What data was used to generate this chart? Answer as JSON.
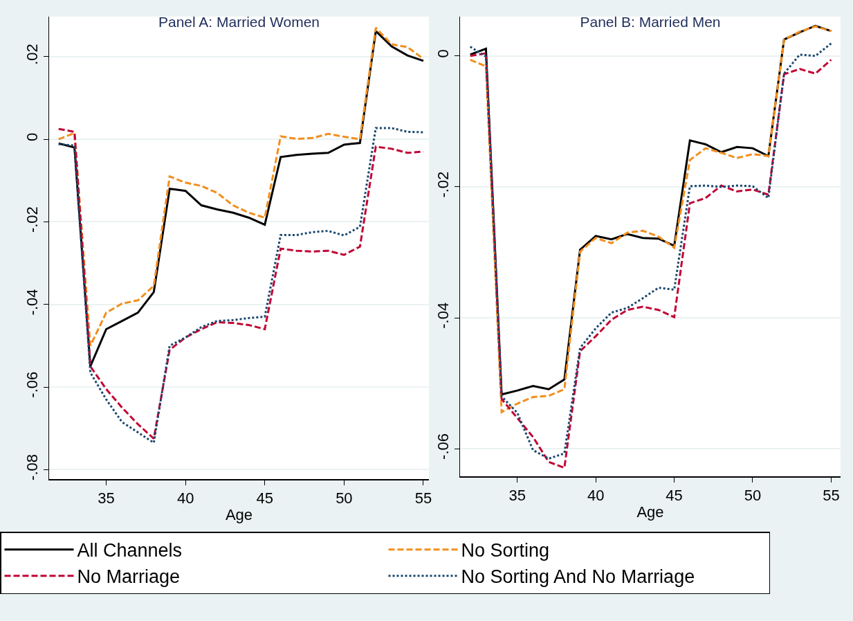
{
  "chart_data": [
    {
      "type": "line",
      "title": "Panel A: Married Women",
      "xlabel": "Age",
      "x": [
        32,
        33,
        34,
        35,
        36,
        37,
        38,
        39,
        40,
        41,
        42,
        43,
        44,
        45,
        46,
        47,
        48,
        49,
        50,
        51,
        52,
        53,
        54,
        55
      ],
      "xlim": [
        31.4,
        55.35
      ],
      "xticks": [
        35,
        40,
        45,
        50,
        55
      ],
      "ylim": [
        -0.0823,
        0.0297
      ],
      "yticks": [
        {
          "value": -0.08,
          "label": "-.08"
        },
        {
          "value": -0.06,
          "label": "-.06"
        },
        {
          "value": -0.04,
          "label": "-.04"
        },
        {
          "value": -0.02,
          "label": "-.02"
        },
        0,
        {
          "value": 0.02,
          "label": ".02"
        }
      ],
      "grid": "y",
      "legend": "bottom",
      "marker": "none",
      "series": [
        {
          "name": "All Channels",
          "color": "#000000",
          "line_style": "solid",
          "values": [
            -0.001,
            -0.002,
            -0.055,
            -0.046,
            -0.044,
            -0.042,
            -0.037,
            -0.012,
            -0.0125,
            -0.016,
            -0.017,
            -0.0178,
            -0.019,
            -0.0207,
            -0.0043,
            -0.0038,
            -0.0035,
            -0.0033,
            -0.0013,
            -0.0009,
            0.0262,
            0.0225,
            0.0203,
            0.019
          ]
        },
        {
          "name": "No Sorting",
          "color": "#f28e1c",
          "line_style": "dashed",
          "values": [
            0.0,
            0.0015,
            -0.05,
            -0.042,
            -0.0398,
            -0.039,
            -0.0355,
            -0.009,
            -0.0105,
            -0.0113,
            -0.013,
            -0.016,
            -0.0178,
            -0.019,
            0.0007,
            0.0001,
            0.0003,
            0.0013,
            0.0006,
            0.0,
            0.027,
            0.023,
            0.0223,
            0.0195
          ]
        },
        {
          "name": "No Marriage",
          "color": "#c10534",
          "line_style": "dashed",
          "values": [
            0.0025,
            0.0018,
            -0.055,
            -0.0605,
            -0.065,
            -0.069,
            -0.0725,
            -0.051,
            -0.048,
            -0.046,
            -0.0443,
            -0.0445,
            -0.045,
            -0.046,
            -0.0265,
            -0.027,
            -0.0272,
            -0.027,
            -0.028,
            -0.026,
            -0.0018,
            -0.0023,
            -0.0033,
            -0.003
          ]
        },
        {
          "name": "No Sorting And No Marriage",
          "color": "#1a476f",
          "line_style": "dotted",
          "values": [
            -0.0012,
            -0.0015,
            -0.0565,
            -0.063,
            -0.0685,
            -0.071,
            -0.0735,
            -0.05,
            -0.048,
            -0.0455,
            -0.044,
            -0.0438,
            -0.0433,
            -0.043,
            -0.0232,
            -0.0232,
            -0.0225,
            -0.0222,
            -0.0233,
            -0.0212,
            0.0027,
            0.0027,
            0.0018,
            0.0017
          ]
        }
      ]
    },
    {
      "type": "line",
      "title": "Panel B: Married Men",
      "xlabel": "Age",
      "x": [
        32,
        33,
        34,
        35,
        36,
        37,
        38,
        39,
        40,
        41,
        42,
        43,
        44,
        45,
        46,
        47,
        48,
        49,
        50,
        51,
        52,
        53,
        54,
        55
      ],
      "xlim": [
        31.35,
        55.6
      ],
      "xticks": [
        35,
        40,
        45,
        50,
        55
      ],
      "ylim": [
        -0.0642,
        0.006
      ],
      "yticks": [
        {
          "value": -0.06,
          "label": "-.06"
        },
        {
          "value": -0.04,
          "label": "-.04"
        },
        {
          "value": -0.02,
          "label": "-.02"
        },
        0
      ],
      "grid": "y",
      "marker": "none",
      "series": [
        {
          "color": "#000000",
          "line_style": "solid",
          "values": [
            0.0002,
            0.0011,
            -0.0517,
            -0.0511,
            -0.0504,
            -0.0509,
            -0.0494,
            -0.0296,
            -0.0275,
            -0.028,
            -0.0272,
            -0.0278,
            -0.0279,
            -0.029,
            -0.0129,
            -0.0135,
            -0.0147,
            -0.0139,
            -0.0141,
            -0.0153,
            0.0025,
            0.0036,
            0.0046,
            0.0038
          ]
        },
        {
          "color": "#f28e1c",
          "line_style": "dashed",
          "values": [
            -0.0006,
            -0.0016,
            -0.0544,
            -0.0531,
            -0.0521,
            -0.0519,
            -0.0509,
            -0.0299,
            -0.0278,
            -0.0286,
            -0.027,
            -0.0267,
            -0.0276,
            -0.0293,
            -0.0159,
            -0.0141,
            -0.0148,
            -0.0156,
            -0.015,
            -0.0153,
            0.0025,
            0.0037,
            0.0045,
            0.0038
          ]
        },
        {
          "color": "#c10534",
          "line_style": "dashed",
          "values": [
            0.0,
            0.0004,
            -0.0524,
            -0.0553,
            -0.0582,
            -0.062,
            -0.0629,
            -0.0451,
            -0.0428,
            -0.0403,
            -0.0388,
            -0.0383,
            -0.0388,
            -0.0399,
            -0.0225,
            -0.0217,
            -0.0198,
            -0.0207,
            -0.0204,
            -0.0212,
            -0.0028,
            -0.002,
            -0.0027,
            -0.0006
          ]
        },
        {
          "color": "#1a476f",
          "line_style": "dotted",
          "values": [
            0.0014,
            -0.0001,
            -0.052,
            -0.0545,
            -0.0602,
            -0.0615,
            -0.0607,
            -0.0446,
            -0.0416,
            -0.0392,
            -0.0385,
            -0.037,
            -0.0354,
            -0.0357,
            -0.0199,
            -0.0198,
            -0.02,
            -0.0198,
            -0.0199,
            -0.0217,
            -0.0027,
            0.0002,
            0,
            0.0019
          ]
        }
      ]
    }
  ]
}
